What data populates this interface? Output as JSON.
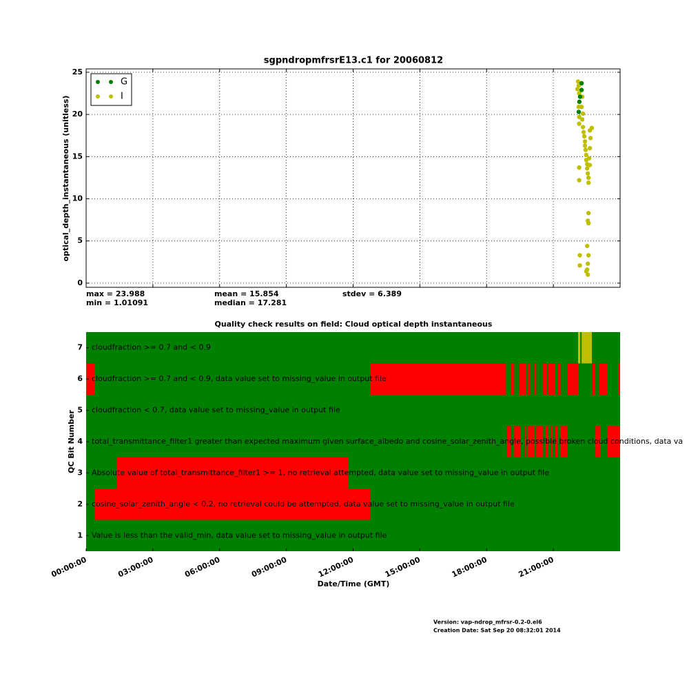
{
  "chart_data": [
    {
      "type": "scatter",
      "title": "sgpndropmfrsrE13.c1 for 20060812",
      "y_label": "optical_depth_instantaneous (unitless)",
      "xlim": [
        0,
        24
      ],
      "xticks": [
        0,
        3,
        6,
        9,
        12,
        15,
        18,
        21
      ],
      "ylim": [
        -0.5,
        25.4
      ],
      "yticks": [
        0,
        5,
        10,
        15,
        20,
        25
      ],
      "grid": true,
      "legend": "upper left",
      "annotations": [
        "max = 23.988",
        "min = 1.01091",
        "mean = 15.854",
        "median = 17.281",
        "stdev = 6.389"
      ],
      "series": [
        {
          "name": "G",
          "color": "#008000",
          "x": [
            22.27,
            22.2,
            22.17,
            22.14,
            22.27
          ],
          "values": [
            23.7,
            22.1,
            21.5,
            20.3,
            22.9
          ]
        },
        {
          "name": "I",
          "color": "#bfbf00",
          "x": [
            22.11,
            22.14,
            22.08,
            22.16,
            22.3,
            22.14,
            22.27,
            22.33,
            22.16,
            22.3,
            22.16,
            22.33,
            22.36,
            22.39,
            22.42,
            22.42,
            22.45,
            22.48,
            22.48,
            22.52,
            22.52,
            22.55,
            22.58,
            22.58,
            22.16,
            22.16,
            22.64,
            22.73,
            22.67,
            22.64,
            22.61,
            22.64,
            22.58,
            22.55,
            22.58,
            22.52,
            22.58,
            22.19,
            22.19,
            22.55,
            22.52,
            22.48,
            22.55
          ],
          "values": [
            23.9,
            23.4,
            23.0,
            22.5,
            22.1,
            20.9,
            20.9,
            20.1,
            19.7,
            19.4,
            18.9,
            18.5,
            17.9,
            17.4,
            16.8,
            16.3,
            15.8,
            15.2,
            14.6,
            14.1,
            13.6,
            13.0,
            12.5,
            11.9,
            13.7,
            12.2,
            18.1,
            18.4,
            17.2,
            16.0,
            14.8,
            14.0,
            8.3,
            7.4,
            7.1,
            4.4,
            3.3,
            3.3,
            2.1,
            2.3,
            1.6,
            1.4,
            1.0
          ]
        }
      ]
    },
    {
      "type": "timeline",
      "title": "Quality check results on field: Cloud optical depth instantaneous",
      "x_label": "Date/Time (GMT)",
      "y_label": "QC Bit Number",
      "background_color": "#008000",
      "xlim": [
        0,
        24
      ],
      "xticks": [
        {
          "value": 0,
          "label": "00:00:00"
        },
        {
          "value": 3,
          "label": "03:00:00"
        },
        {
          "value": 6,
          "label": "06:00:00"
        },
        {
          "value": 9,
          "label": "09:00:00"
        },
        {
          "value": 12,
          "label": "12:00:00"
        },
        {
          "value": 15,
          "label": "15:00:00"
        },
        {
          "value": 18,
          "label": "18:00:00"
        },
        {
          "value": 21,
          "label": "21:00:00"
        }
      ],
      "ylim": [
        0.5,
        7.5
      ],
      "yticks": [
        1,
        2,
        3,
        4,
        5,
        6,
        7
      ],
      "rows": [
        {
          "bit": 7,
          "label": "cloudfraction >= 0.7 and < 0.9",
          "color": "#bfbf00",
          "segments": [
            {
              "start": 22.11,
              "end": 22.21
            },
            {
              "start": 22.27,
              "end": 22.73
            }
          ]
        },
        {
          "bit": 6,
          "label": "cloudfraction >= 0.7 and < 0.9, data value set to missing_value in output file",
          "color": "#ff0000",
          "segments": [
            {
              "start": 0,
              "end": 0.37
            },
            {
              "start": 12.77,
              "end": 18.87
            },
            {
              "start": 19.08,
              "end": 19.24
            },
            {
              "start": 19.48,
              "end": 19.76
            },
            {
              "start": 19.86,
              "end": 19.95
            },
            {
              "start": 20.13,
              "end": 20.23
            },
            {
              "start": 20.54,
              "end": 20.69
            },
            {
              "start": 20.78,
              "end": 21.06
            },
            {
              "start": 21.19,
              "end": 21.34
            },
            {
              "start": 21.62,
              "end": 22.11
            },
            {
              "start": 22.73,
              "end": 22.89
            },
            {
              "start": 23.07,
              "end": 23.41
            },
            {
              "start": 23.91,
              "end": 24
            }
          ]
        },
        {
          "bit": 5,
          "label": "cloudfraction < 0.7, data value set to missing_value in output file",
          "color": "#ff0000",
          "segments": []
        },
        {
          "bit": 4,
          "label": "total_transmittance_filter1 greater than expected maximum given surface_albedo and cosine_solar_zenith_angle, possible broken cloud conditions, data va",
          "color": "#ff0000",
          "segments": [
            {
              "start": 18.9,
              "end": 19.11
            },
            {
              "start": 19.24,
              "end": 19.52
            },
            {
              "start": 19.73,
              "end": 19.79
            },
            {
              "start": 19.86,
              "end": 20.13
            },
            {
              "start": 20.23,
              "end": 20.54
            },
            {
              "start": 20.66,
              "end": 20.78
            },
            {
              "start": 20.88,
              "end": 20.97
            },
            {
              "start": 21.06,
              "end": 21.19
            },
            {
              "start": 21.34,
              "end": 21.62
            },
            {
              "start": 22.89,
              "end": 23.1
            },
            {
              "start": 23.41,
              "end": 24
            }
          ]
        },
        {
          "bit": 3,
          "label": "Absolute value of total_transmittance_filter1 >= 1, no retrieval attempted, data value set to missing_value in output file",
          "color": "#ff0000",
          "segments": [
            {
              "start": 1.36,
              "end": 11.78
            }
          ]
        },
        {
          "bit": 2,
          "label": "cosine_solar_zenith_angle < 0.2, no retrieval could be attempted, data value set to missing_value in output file",
          "color": "#ff0000",
          "segments": [
            {
              "start": 0.37,
              "end": 12.77
            }
          ]
        },
        {
          "bit": 1,
          "label": "Value is less than the valid_min, data value set to missing_value in output file",
          "color": "#ff0000",
          "segments": []
        }
      ]
    }
  ],
  "footer": {
    "version": "Version: vap-ndrop_mfrsr-0.2-0.el6",
    "created": "Creation Date: Sat Sep 20 08:32:01 2014"
  }
}
